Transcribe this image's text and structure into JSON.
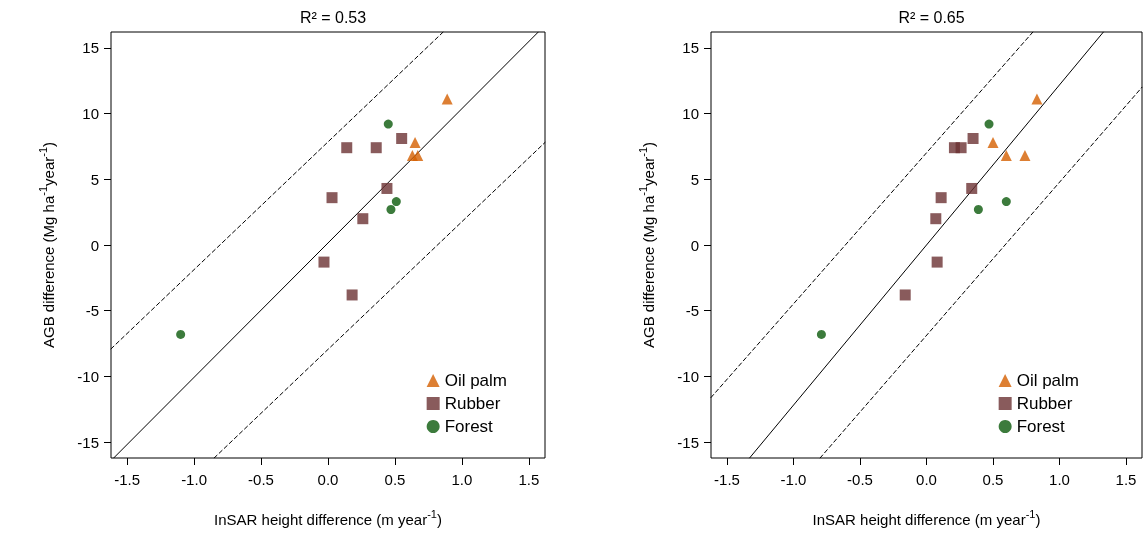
{
  "chart_data": [
    {
      "type": "scatter",
      "title": "R² = 0.53",
      "xlabel": "InSAR height difference (m year$^{-1}$)",
      "ylabel": "AGB difference (Mg ha$^{-1}$year$^{-1}$)",
      "xlim": [
        -1.62,
        1.62
      ],
      "ylim": [
        -16.2,
        16.2
      ],
      "xticks": [
        -1.5,
        {
          "value": -1,
          "label": "-1.0"
        },
        -0.5,
        {
          "value": 0,
          "label": "0.0"
        },
        0.5,
        {
          "value": 1,
          "label": "1.0"
        },
        1.5
      ],
      "yticks": [
        -15,
        -10,
        -5,
        0,
        5,
        10,
        15
      ],
      "grid": false,
      "legend": "bottom right",
      "series": [
        {
          "name": "Oil palm",
          "color": "#d45f00",
          "marker": "triangle",
          "x": [
            0.89,
            0.65,
            0.63,
            0.67
          ],
          "values": [
            11.1,
            7.8,
            6.8,
            6.8
          ]
        },
        {
          "name": "Rubber",
          "color": "#6b3233",
          "marker": "square",
          "x": [
            0.14,
            0.36,
            0.55,
            0.03,
            0.44,
            0.26,
            -0.03,
            0.18
          ],
          "values": [
            7.4,
            7.4,
            8.1,
            3.6,
            4.3,
            2.0,
            -1.3,
            -3.8
          ]
        },
        {
          "name": "Forest",
          "color": "#0b5a0b",
          "marker": "circle",
          "x": [
            0.45,
            0.51,
            0.47,
            -1.1
          ],
          "values": [
            9.2,
            3.3,
            2.7,
            -6.8
          ]
        },
        {
          "type": "line",
          "color": "#000000",
          "line_style": "solid",
          "marker": "none",
          "x": [
            -1.6,
            1.57
          ],
          "values": [
            -16.2,
            16.2
          ]
        },
        {
          "type": "line",
          "color": "#000000",
          "line_style": "dashed",
          "marker": "none",
          "x": [
            -1.62,
            0.86
          ],
          "values": [
            -7.9,
            16.2
          ]
        },
        {
          "type": "line",
          "color": "#000000",
          "line_style": "dashed",
          "marker": "none",
          "x": [
            -0.85,
            1.62
          ],
          "values": [
            -16.2,
            7.8
          ]
        }
      ]
    },
    {
      "type": "scatter",
      "title": "R² = 0.65",
      "xlabel": "InSAR height difference (m year$^{-1}$)",
      "ylabel": "AGB difference (Mg ha$^{-1}$year$^{-1}$)",
      "xlim": [
        -1.62,
        1.62
      ],
      "ylim": [
        -16.2,
        16.2
      ],
      "xticks": [
        -1.5,
        {
          "value": -1,
          "label": "-1.0"
        },
        -0.5,
        {
          "value": 0,
          "label": "0.0"
        },
        0.5,
        {
          "value": 1,
          "label": "1.0"
        },
        1.5
      ],
      "yticks": [
        -15,
        -10,
        -5,
        0,
        5,
        10,
        15
      ],
      "grid": false,
      "legend": "bottom right",
      "series": [
        {
          "name": "Oil palm",
          "color": "#d45f00",
          "marker": "triangle",
          "x": [
            0.83,
            0.5,
            0.6,
            0.74
          ],
          "values": [
            11.1,
            7.8,
            6.8,
            6.8
          ]
        },
        {
          "name": "Rubber",
          "color": "#6b3233",
          "marker": "square",
          "x": [
            0.21,
            0.26,
            0.35,
            0.11,
            0.34,
            0.07,
            0.08,
            -0.16
          ],
          "values": [
            7.4,
            7.4,
            8.1,
            3.6,
            4.3,
            2.0,
            -1.3,
            -3.8
          ]
        },
        {
          "name": "Forest",
          "color": "#0b5a0b",
          "marker": "circle",
          "x": [
            0.47,
            0.6,
            0.39,
            -0.79
          ],
          "values": [
            9.2,
            3.3,
            2.7,
            -6.8
          ]
        },
        {
          "type": "line",
          "color": "#000000",
          "line_style": "solid",
          "marker": "none",
          "x": [
            -1.33,
            1.33
          ],
          "values": [
            -16.2,
            16.2
          ]
        },
        {
          "type": "line",
          "color": "#000000",
          "line_style": "dashed",
          "marker": "none",
          "x": [
            -1.62,
            0.8
          ],
          "values": [
            -11.6,
            16.2
          ]
        },
        {
          "type": "line",
          "color": "#000000",
          "line_style": "dashed",
          "marker": "none",
          "x": [
            -0.8,
            1.62
          ],
          "values": [
            -16.2,
            12.0
          ]
        }
      ]
    }
  ]
}
